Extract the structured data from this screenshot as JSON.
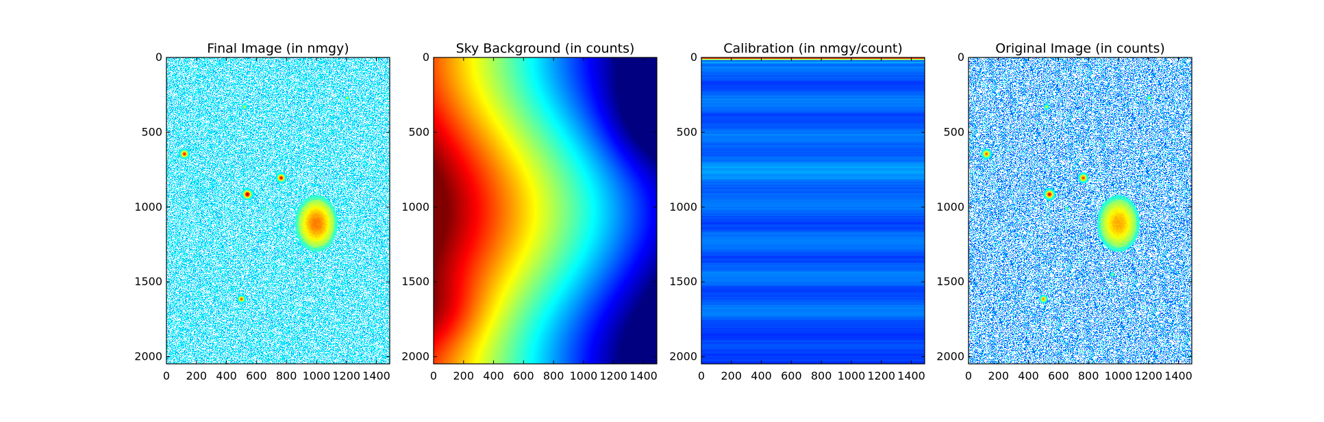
{
  "chart_data": [
    {
      "type": "heatmap",
      "title": "Final Image (in nmgy)",
      "colormap": "jet",
      "xlim": [
        0,
        1489
      ],
      "ylim": [
        2048,
        0
      ],
      "xticks": [
        0,
        200,
        400,
        600,
        800,
        1000,
        1200,
        1400
      ],
      "yticks": [
        0,
        500,
        1000,
        1500,
        2000
      ],
      "background": "noise",
      "sources": [
        {
          "x": 1000,
          "y": 1110,
          "rx": 120,
          "ry": 160,
          "peak": 0.62,
          "kind": "galaxy"
        },
        {
          "x": 540,
          "y": 915,
          "r": 22,
          "peak": 1.0
        },
        {
          "x": 120,
          "y": 645,
          "r": 20,
          "peak": 0.85
        },
        {
          "x": 765,
          "y": 805,
          "r": 20,
          "peak": 0.9
        },
        {
          "x": 500,
          "y": 1615,
          "r": 16,
          "peak": 0.8
        },
        {
          "x": 520,
          "y": 330,
          "r": 12,
          "peak": 0.45
        },
        {
          "x": 1205,
          "y": 270,
          "r": 10,
          "peak": 0.45
        },
        {
          "x": 960,
          "y": 1450,
          "r": 9,
          "peak": 0.4
        },
        {
          "x": 655,
          "y": 1010,
          "r": 8,
          "peak": 0.4
        }
      ]
    },
    {
      "type": "heatmap",
      "title": "Sky Background (in counts)",
      "colormap": "jet",
      "xlim": [
        0,
        1489
      ],
      "ylim": [
        2048,
        0
      ],
      "xticks": [
        0,
        200,
        400,
        600,
        800,
        1000,
        1200,
        1400
      ],
      "yticks": [
        0,
        500,
        1000,
        1500,
        2000
      ],
      "background": "smooth"
    },
    {
      "type": "heatmap",
      "title": "Calibration (in nmgy/count)",
      "colormap": "jet",
      "xlim": [
        0,
        1489
      ],
      "ylim": [
        2048,
        0
      ],
      "xticks": [
        0,
        200,
        400,
        600,
        800,
        1000,
        1200,
        1400
      ],
      "yticks": [
        0,
        500,
        1000,
        1500,
        2000
      ],
      "background": "rows"
    },
    {
      "type": "heatmap",
      "title": "Original Image (in counts)",
      "colormap": "jet",
      "xlim": [
        0,
        1489
      ],
      "ylim": [
        2048,
        0
      ],
      "xticks": [
        0,
        200,
        400,
        600,
        800,
        1000,
        1200,
        1400
      ],
      "yticks": [
        0,
        500,
        1000,
        1500,
        2000
      ],
      "background": "noise-dark",
      "sources": [
        {
          "x": 1000,
          "y": 1110,
          "rx": 120,
          "ry": 160,
          "peak": 0.55,
          "kind": "galaxy"
        },
        {
          "x": 540,
          "y": 915,
          "r": 22,
          "peak": 0.9
        },
        {
          "x": 120,
          "y": 645,
          "r": 20,
          "peak": 0.75
        },
        {
          "x": 765,
          "y": 805,
          "r": 20,
          "peak": 0.8
        },
        {
          "x": 500,
          "y": 1615,
          "r": 16,
          "peak": 0.7
        },
        {
          "x": 520,
          "y": 330,
          "r": 12,
          "peak": 0.45
        },
        {
          "x": 1205,
          "y": 270,
          "r": 10,
          "peak": 0.45
        },
        {
          "x": 960,
          "y": 1450,
          "r": 9,
          "peak": 0.4
        },
        {
          "x": 655,
          "y": 1010,
          "r": 8,
          "peak": 0.4
        }
      ]
    }
  ]
}
